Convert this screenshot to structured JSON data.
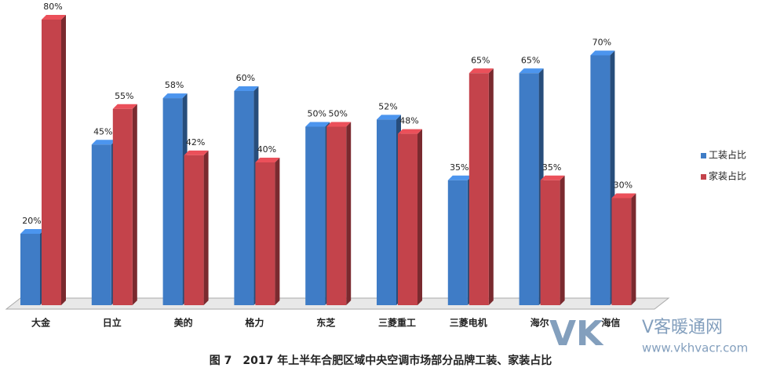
{
  "chart_data": {
    "type": "bar3d",
    "title": "图 7　2017 年上半年合肥区域中央空调市场部分品牌工装、家装占比",
    "categories": [
      "大金",
      "日立",
      "美的",
      "格力",
      "东芝",
      "三菱重工",
      "三菱电机",
      "海尔",
      "海信"
    ],
    "series": [
      {
        "name": "工装占比",
        "color": "#3f7cc6",
        "values": [
          20,
          45,
          58,
          60,
          50,
          52,
          35,
          65,
          70
        ],
        "value_labels": [
          "20%",
          "45%",
          "58%",
          "60%",
          "50%",
          "52%",
          "35%",
          "65%",
          "70%"
        ]
      },
      {
        "name": "家装占比",
        "color": "#c4434b",
        "values": [
          80,
          55,
          42,
          40,
          50,
          48,
          65,
          35,
          30
        ],
        "value_labels": [
          "80%",
          "55%",
          "42%",
          "40%",
          "50%",
          "48%",
          "65%",
          "35%",
          "30%"
        ]
      }
    ],
    "legend": "right"
  },
  "watermark": {
    "logo": "VK",
    "name": "V客暖通网",
    "url": "www.vkhvacr.com"
  }
}
